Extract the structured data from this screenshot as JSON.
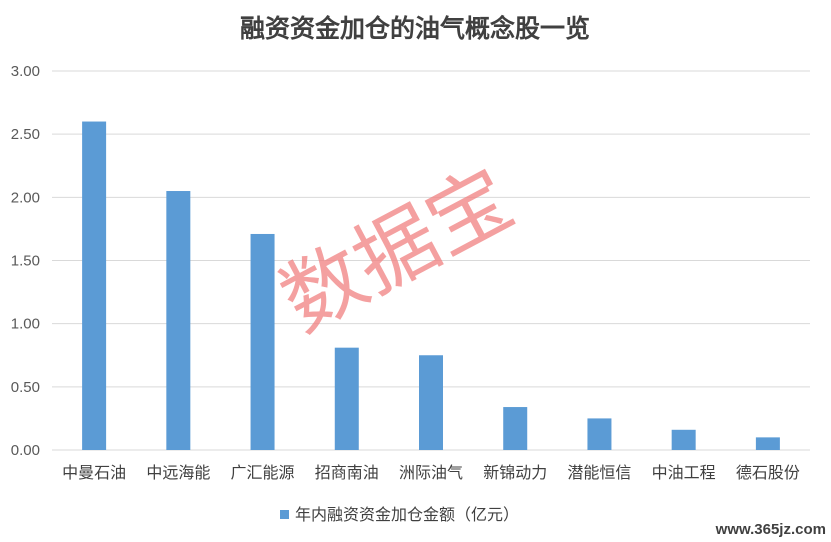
{
  "chart_data": {
    "type": "bar",
    "title": "融资资金加仓的油气概念股一览",
    "categories": [
      "中曼石油",
      "中远海能",
      "广汇能源",
      "招商南油",
      "洲际油气",
      "新锦动力",
      "潜能恒信",
      "中油工程",
      "德石股份"
    ],
    "series": [
      {
        "name": "年内融资资金加仓金额（亿元）",
        "values": [
          2.6,
          2.05,
          1.71,
          0.81,
          0.75,
          0.34,
          0.25,
          0.16,
          0.1
        ]
      }
    ],
    "yticks": [
      "0.00",
      "0.50",
      "1.00",
      "1.50",
      "2.00",
      "2.50",
      "3.00"
    ],
    "ylim": [
      0,
      3
    ],
    "xlabel": "",
    "ylabel": "",
    "grid": true,
    "legend_position": "bottom",
    "bar_color": "#5b9bd5",
    "grid_color": "#d9d9d9"
  },
  "watermark": "数据宝",
  "watermark_color": "#f08080",
  "footer_url": "www.365jz.com"
}
